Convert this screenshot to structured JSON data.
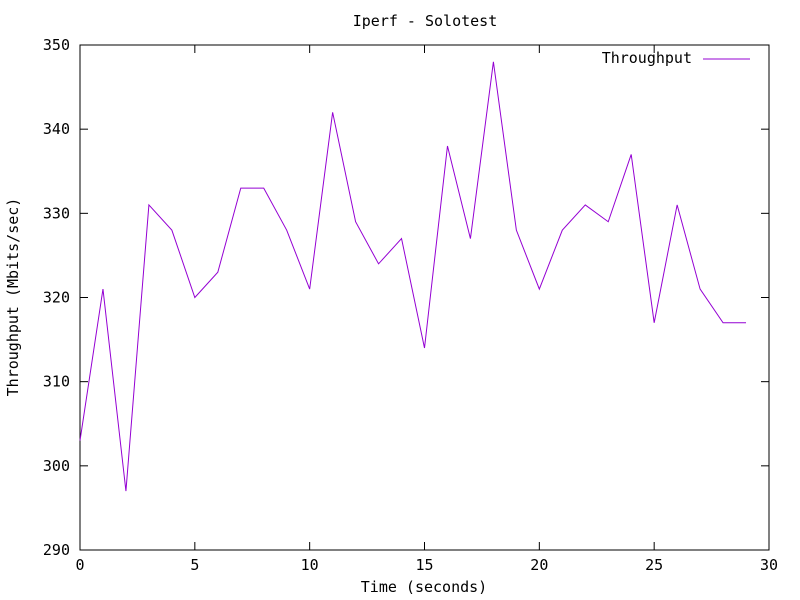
{
  "chart_data": {
    "type": "line",
    "title": "Iperf - Solotest",
    "xlabel": "Time (seconds)",
    "ylabel": "Throughput (Mbits/sec)",
    "xlim": [
      0,
      30
    ],
    "ylim": [
      290,
      350
    ],
    "xticks": [
      0,
      5,
      10,
      15,
      20,
      25,
      30
    ],
    "yticks": [
      290,
      300,
      310,
      320,
      330,
      340,
      350
    ],
    "grid": false,
    "legend_position": "top-right",
    "x": [
      0,
      1,
      2,
      3,
      4,
      5,
      6,
      7,
      8,
      9,
      10,
      11,
      12,
      13,
      14,
      15,
      16,
      17,
      18,
      19,
      20,
      21,
      22,
      23,
      24,
      25,
      26,
      27,
      28,
      29
    ],
    "series": [
      {
        "name": "Throughput",
        "color": "#9400d3",
        "values": [
          303,
          321,
          297,
          331,
          328,
          320,
          323,
          333,
          333,
          328,
          321,
          342,
          329,
          324,
          327,
          314,
          338,
          327,
          348,
          328,
          321,
          328,
          331,
          329,
          337,
          317,
          331,
          321,
          317,
          317
        ]
      }
    ]
  }
}
